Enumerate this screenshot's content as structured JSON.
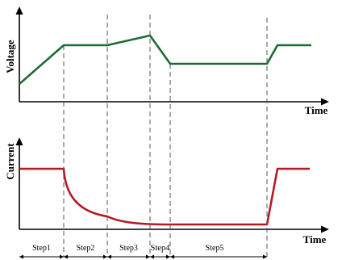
{
  "voltage_panel": {
    "ylabel": "Voltage",
    "xlabel": "Time",
    "curve_color": "#1e6b36"
  },
  "current_panel": {
    "ylabel": "Current",
    "xlabel": "Time",
    "curve_color": "#b31b25"
  },
  "steps": [
    {
      "label": "Step1"
    },
    {
      "label": "Step2"
    },
    {
      "label": "Step3"
    },
    {
      "label": "Step4"
    },
    {
      "label": "Step5"
    }
  ]
}
